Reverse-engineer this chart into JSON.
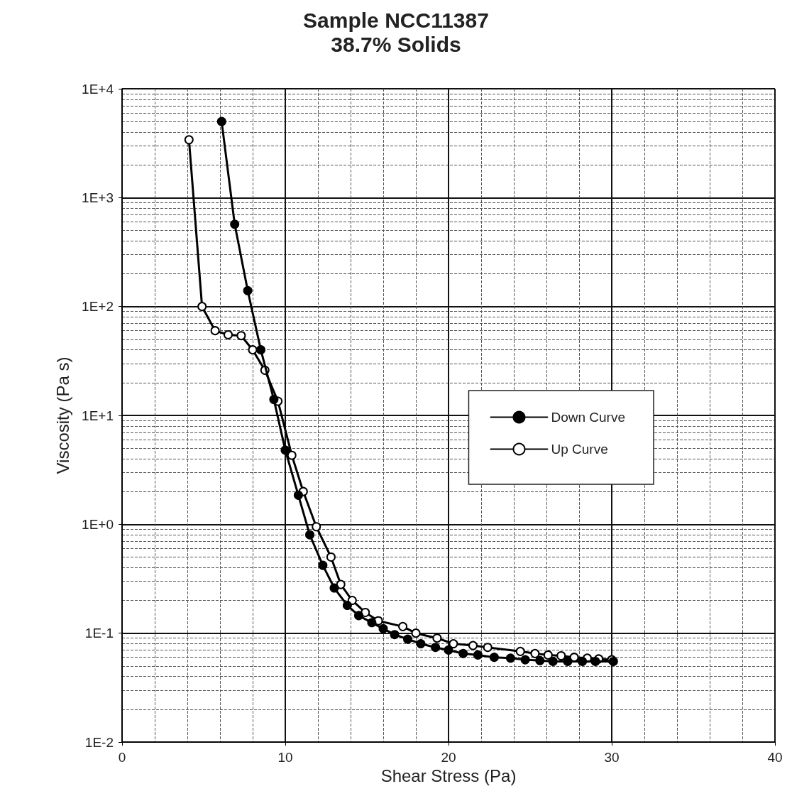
{
  "chart_data": {
    "type": "line",
    "title": "Sample NCC11387",
    "subtitle": "38.7% Solids",
    "xlabel": "Shear Stress (Pa)",
    "ylabel": "Viscosity (Pa s)",
    "xlim": [
      0,
      40
    ],
    "xticks": [
      0,
      10,
      20,
      30,
      40
    ],
    "log": "y",
    "ylim": [
      0.01,
      10000
    ],
    "yticks": [
      {
        "value": 0.01,
        "label": "1E-2"
      },
      {
        "value": 0.1,
        "label": "1E-1"
      },
      {
        "value": 1,
        "label": "1E+0"
      },
      {
        "value": 10,
        "label": "1E+1"
      },
      {
        "value": 100,
        "label": "1E+2"
      },
      {
        "value": 1000,
        "label": "1E+3"
      },
      {
        "value": 10000,
        "label": "1E+4"
      }
    ],
    "grid": true,
    "legend": "right",
    "marker": "circle",
    "line_style": "solid",
    "series": [
      {
        "name": "Down Curve",
        "color": "#000000",
        "x": [
          6.1,
          6.9,
          7.7,
          8.5,
          9.3,
          10.0,
          10.8,
          11.5,
          12.3,
          13.0,
          13.8,
          14.5,
          15.3,
          16.0,
          16.7,
          17.5,
          18.3,
          19.2,
          20.0,
          20.9,
          21.8,
          22.8,
          23.8,
          24.7,
          25.6,
          26.4,
          27.3,
          28.2,
          29.0,
          30.1
        ],
        "values": [
          5000,
          570,
          140,
          40,
          14,
          4.8,
          1.85,
          0.8,
          0.42,
          0.26,
          0.18,
          0.145,
          0.125,
          0.11,
          0.097,
          0.088,
          0.08,
          0.074,
          0.07,
          0.065,
          0.063,
          0.06,
          0.059,
          0.057,
          0.056,
          0.055,
          0.055,
          0.055,
          0.055,
          0.055
        ]
      },
      {
        "name": "Up Curve",
        "color": "#000000",
        "x": [
          4.1,
          4.9,
          5.7,
          6.5,
          7.3,
          8.0,
          8.75,
          9.55,
          10.4,
          11.1,
          11.9,
          12.8,
          13.4,
          14.1,
          14.9,
          15.7,
          17.2,
          18.0,
          19.3,
          20.3,
          21.5,
          22.4,
          24.4,
          25.3,
          26.1,
          26.9,
          27.7,
          28.5,
          29.2,
          30.0
        ],
        "values": [
          3400,
          100,
          60,
          55,
          54,
          40,
          26,
          13.5,
          4.3,
          2.0,
          0.95,
          0.5,
          0.28,
          0.2,
          0.155,
          0.13,
          0.115,
          0.1,
          0.09,
          0.08,
          0.077,
          0.074,
          0.068,
          0.065,
          0.063,
          0.062,
          0.06,
          0.059,
          0.058,
          0.057
        ]
      }
    ]
  }
}
